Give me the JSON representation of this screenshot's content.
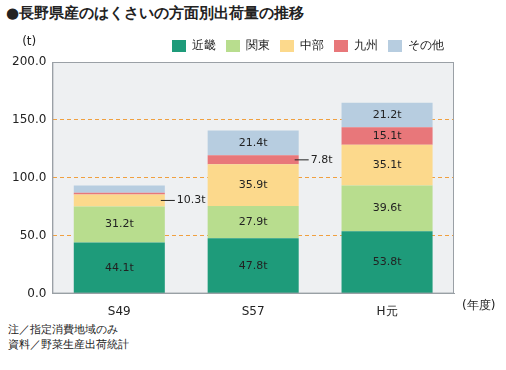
{
  "chart_data": {
    "type": "bar",
    "title": "●長野県産のはくさいの方面別出荷量の推移",
    "y_label": "(t)",
    "x_label": "(年度)",
    "notes": [
      "注／指定消費地域のみ",
      "資料／野菜生産出荷統計"
    ],
    "categories": [
      "S49",
      "S57",
      "H元"
    ],
    "series": [
      {
        "name": "近畿",
        "color": "#1e9b7a",
        "values": [
          44.1,
          47.8,
          53.8
        ],
        "value_labels": [
          "44.1t",
          "47.8t",
          "53.8t"
        ]
      },
      {
        "name": "関東",
        "color": "#b8dd8e",
        "values": [
          31.2,
          27.9,
          39.6
        ],
        "value_labels": [
          "31.2t",
          "27.9t",
          "39.6t"
        ]
      },
      {
        "name": "中部",
        "color": "#fcd98c",
        "values": [
          10.3,
          35.9,
          35.1
        ],
        "value_labels": [
          "10.3t",
          "35.9t",
          "35.1t"
        ]
      },
      {
        "name": "九州",
        "color": "#e8777a",
        "values": [
          1.5,
          7.8,
          15.1
        ],
        "value_labels": [
          null,
          "7.8t",
          "15.1t"
        ]
      },
      {
        "name": "その他",
        "color": "#b7cde0",
        "values": [
          6.3,
          21.4,
          21.2
        ],
        "value_labels": [
          null,
          "21.4t",
          "21.2t"
        ]
      }
    ],
    "ylim": [
      0,
      200
    ],
    "yticks": [
      {
        "value": 0,
        "label": "0.0"
      },
      {
        "value": 50,
        "label": "50.0"
      },
      {
        "value": 100,
        "label": "100.0"
      },
      {
        "value": 150,
        "label": "150.0"
      },
      {
        "value": 200,
        "label": "200.0"
      }
    ],
    "grid": true,
    "stacked": true,
    "legend": "top right",
    "data_labels": true
  }
}
